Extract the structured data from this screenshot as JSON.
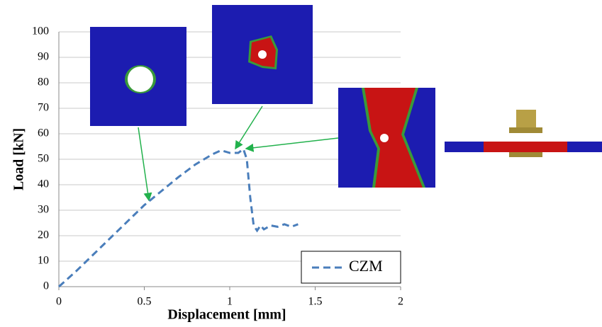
{
  "chart_data": {
    "type": "line",
    "xlabel": "Displacement [mm]",
    "ylabel": "Load [kN]",
    "x": [
      0,
      0.1,
      0.2,
      0.3,
      0.4,
      0.5,
      0.6,
      0.7,
      0.8,
      0.85,
      0.9,
      0.95,
      1.0,
      1.05,
      1.08,
      1.1,
      1.12,
      1.14,
      1.16,
      1.18,
      1.2,
      1.24,
      1.28,
      1.32,
      1.36,
      1.4
    ],
    "series": [
      {
        "name": "CZM",
        "color": "#4a7ebb",
        "dashed": true,
        "values": [
          0,
          6,
          12.5,
          19,
          25.5,
          32,
          37.5,
          43,
          48,
          50,
          52,
          53.5,
          52.5,
          52.5,
          54,
          50,
          35,
          24,
          22,
          24,
          22.5,
          24,
          23.5,
          24.5,
          23.5,
          24.5
        ]
      }
    ],
    "xlim": [
      0,
      2
    ],
    "ylim": [
      0,
      100
    ],
    "xticks": [
      0,
      0.5,
      1,
      1.5,
      2
    ],
    "yticks": [
      0,
      10,
      20,
      30,
      40,
      50,
      60,
      70,
      80,
      90,
      100
    ],
    "grid": true,
    "legend": "lower right"
  }
}
